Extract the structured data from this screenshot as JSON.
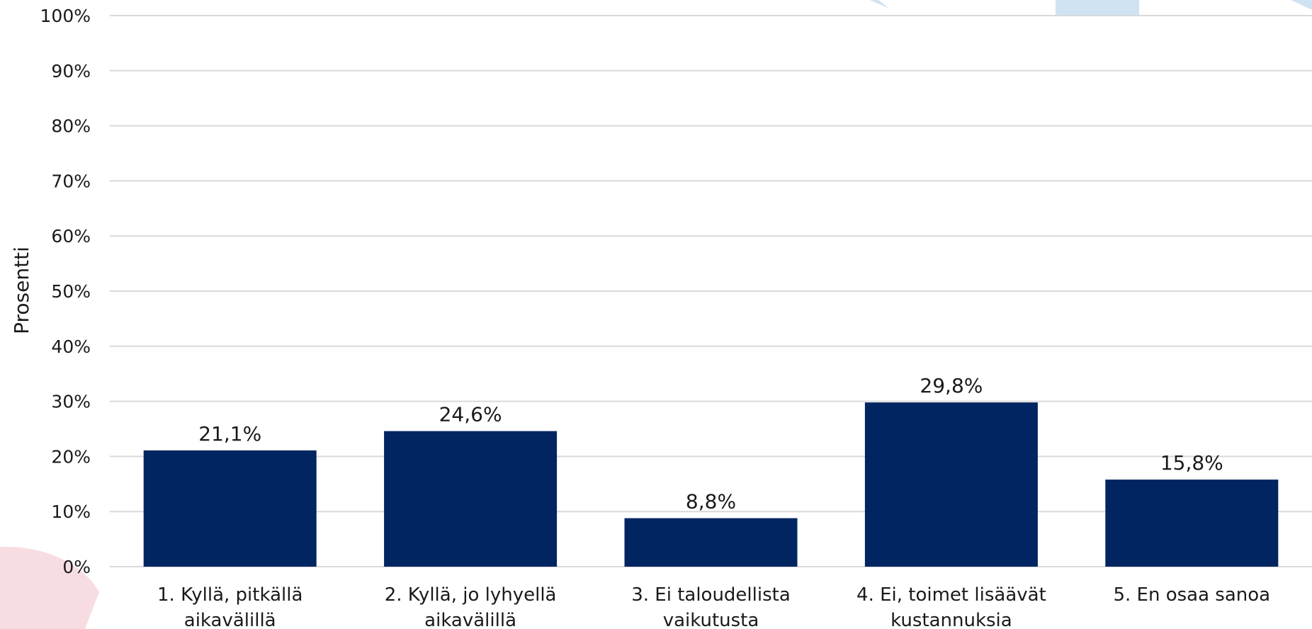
{
  "chart_data": {
    "type": "bar",
    "ylabel": "Prosentti",
    "ylim": [
      0,
      100
    ],
    "yticks": [
      "0%",
      "10%",
      "20%",
      "30%",
      "40%",
      "50%",
      "60%",
      "70%",
      "80%",
      "90%",
      "100%"
    ],
    "grid": true,
    "categories": [
      [
        "1. Kyllä, pitkällä",
        "aikavälillä"
      ],
      [
        "2. Kyllä, jo lyhyellä",
        "aikavälillä"
      ],
      [
        "3. Ei taloudellista",
        "vaikutusta"
      ],
      [
        "4. Ei, toimet lisäävät",
        "kustannuksia"
      ],
      [
        "5. En osaa sanoa"
      ]
    ],
    "values": [
      21.1,
      24.6,
      8.8,
      29.8,
      15.8
    ],
    "data_labels": [
      "21,1%",
      "24,6%",
      "8,8%",
      "29,8%",
      "15,8%"
    ],
    "colors": {
      "bar": "#002561",
      "grid": "#d9d9d9",
      "deco_blue": "#cfe3f3",
      "deco_pink": "#f7dde2"
    }
  }
}
